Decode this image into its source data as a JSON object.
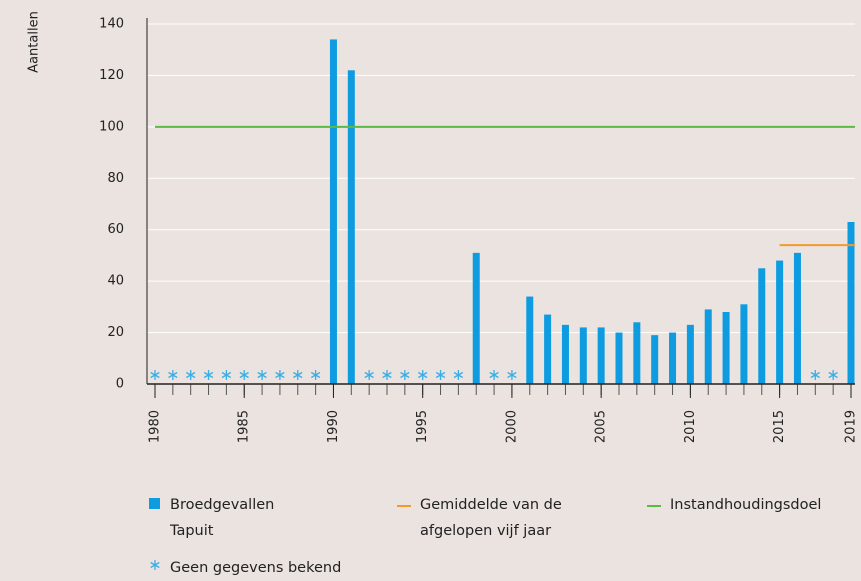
{
  "chart_data": {
    "type": "bar",
    "y_label": "Aantallen",
    "x": [
      1980,
      1981,
      1982,
      1983,
      1984,
      1985,
      1986,
      1987,
      1988,
      1989,
      1990,
      1991,
      1992,
      1993,
      1994,
      1995,
      1996,
      1997,
      1998,
      1999,
      2000,
      2001,
      2002,
      2003,
      2004,
      2005,
      2006,
      2007,
      2008,
      2009,
      2010,
      2011,
      2012,
      2013,
      2014,
      2015,
      2016,
      2017,
      2018,
      2019
    ],
    "xlim": [
      1980,
      2019
    ],
    "xticks": [
      1980,
      1985,
      1990,
      1995,
      2000,
      2005,
      2010,
      2015,
      2019
    ],
    "ylim": [
      0,
      140
    ],
    "yticks": [
      0,
      20,
      40,
      60,
      80,
      100,
      120,
      140
    ],
    "grid": true,
    "series": [
      {
        "name": "Broedgevallen Tapuit",
        "color": "#0e9be0",
        "values": [
          null,
          null,
          null,
          null,
          null,
          null,
          null,
          null,
          null,
          null,
          134,
          122,
          null,
          null,
          null,
          null,
          null,
          null,
          51,
          null,
          null,
          34,
          27,
          23,
          22,
          22,
          20,
          24,
          19,
          20,
          23,
          29,
          28,
          31,
          45,
          48,
          51,
          null,
          null,
          63
        ]
      }
    ],
    "lines": [
      {
        "name": "Gemiddelde van de afgelopen vijf jaar",
        "color": "#f39a2b",
        "value": 54,
        "x": [
          2015,
          2019
        ]
      },
      {
        "name": "Instandhoudingsdoel",
        "color": "#5cb946",
        "value": 100,
        "x": [
          1980,
          2019
        ]
      }
    ],
    "no_data_label": "Geen gegevens bekend",
    "no_data_color": "#3aaee6"
  }
}
